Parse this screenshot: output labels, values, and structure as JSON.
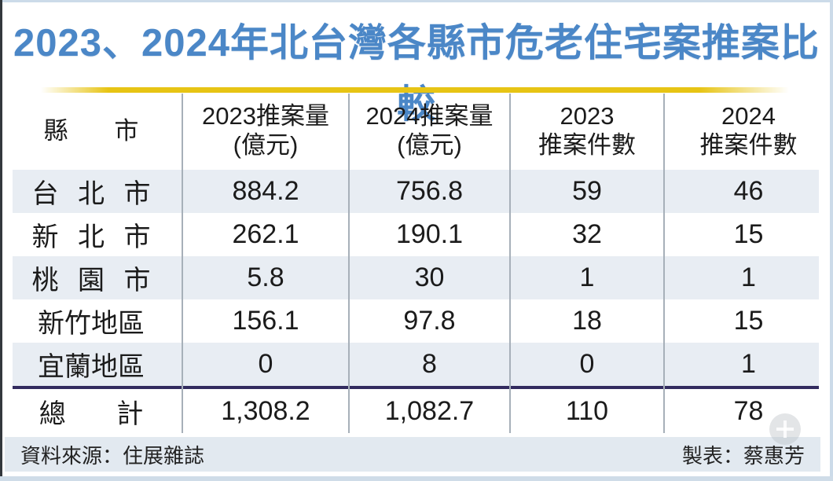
{
  "title": "2023、2024年北台灣各縣市危老住宅案推案比較",
  "table": {
    "columns": [
      {
        "line1": "縣市",
        "line2": ""
      },
      {
        "line1": "2023推案量",
        "line2": "(億元)"
      },
      {
        "line1": "2024推案量",
        "line2": "(億元)"
      },
      {
        "line1": "2023",
        "line2": "推案件數"
      },
      {
        "line1": "2024",
        "line2": "推案件數"
      }
    ],
    "rows": [
      {
        "city": "台北市",
        "v2023": "884.2",
        "v2024": "756.8",
        "c2023": "59",
        "c2024": "46"
      },
      {
        "city": "新北市",
        "v2023": "262.1",
        "v2024": "190.1",
        "c2023": "32",
        "c2024": "15"
      },
      {
        "city": "桃園市",
        "v2023": "5.8",
        "v2024": "30",
        "c2023": "1",
        "c2024": "1"
      },
      {
        "city": "新竹地區",
        "v2023": "156.1",
        "v2024": "97.8",
        "c2023": "18",
        "c2024": "15"
      },
      {
        "city": "宜蘭地區",
        "v2023": "0",
        "v2024": "8",
        "c2023": "0",
        "c2024": "1"
      }
    ],
    "total": {
      "label": "總計",
      "v2023": "1,308.2",
      "v2024": "1,082.7",
      "c2023": "110",
      "c2024": "78"
    }
  },
  "footer": {
    "source": "資料來源：住展雜誌",
    "credit": "製表：蔡惠芳"
  },
  "colors": {
    "title_blue": "#4b87c7",
    "underline_gold": "#e7c414",
    "row_shade": "#e8edf3",
    "total_rule_navy": "#322b5f",
    "footer_bg": "#e2e9f0",
    "column_line_gray": "#a7b0b9"
  },
  "chart_data": {
    "type": "table",
    "title": "2023、2024年北台灣各縣市危老住宅案推案比較",
    "columns": [
      "縣市",
      "2023推案量(億元)",
      "2024推案量(億元)",
      "2023推案件數",
      "2024推案件數"
    ],
    "rows": [
      [
        "台北市",
        884.2,
        756.8,
        59,
        46
      ],
      [
        "新北市",
        262.1,
        190.1,
        32,
        15
      ],
      [
        "桃園市",
        5.8,
        30,
        1,
        1
      ],
      [
        "新竹地區",
        156.1,
        97.8,
        18,
        15
      ],
      [
        "宜蘭地區",
        0,
        8,
        0,
        1
      ],
      [
        "總計",
        1308.2,
        1082.7,
        110,
        78
      ]
    ],
    "source": "資料來源：住展雜誌",
    "credit": "製表：蔡惠芳"
  }
}
